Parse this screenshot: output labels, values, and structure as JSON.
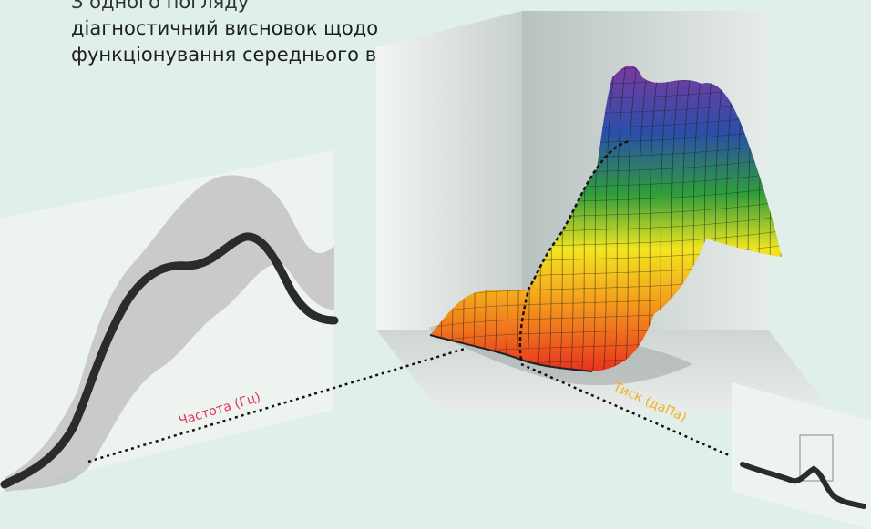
{
  "description": "діагностичний висновок щодо функціонування середнього вуха.",
  "description_partial_top_line": "З одного погляду",
  "axes": {
    "frequency": {
      "label": "Частота (Гц)",
      "color": "#e5335a"
    },
    "pressure": {
      "label": "Тиск (даПа)",
      "color": "#f2b21b"
    }
  },
  "surface_colors": [
    "#e8321f",
    "#f49a1c",
    "#f3e51f",
    "#2f9e3a",
    "#2b4fa8",
    "#7a3aa0"
  ],
  "curve_color": "#2b2b2b",
  "band_color": "#bcbcbc"
}
